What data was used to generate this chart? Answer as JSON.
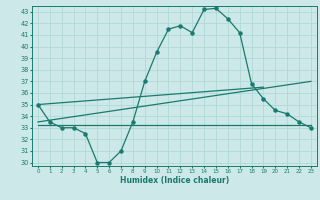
{
  "xlabel": "Humidex (Indice chaleur)",
  "x": [
    0,
    1,
    2,
    3,
    4,
    5,
    6,
    7,
    8,
    9,
    10,
    11,
    12,
    13,
    14,
    15,
    16,
    17,
    18,
    19,
    20,
    21,
    22,
    23
  ],
  "line1": [
    35,
    33.5,
    33,
    33,
    32.5,
    30,
    30,
    31,
    33.5,
    37,
    39.5,
    41.5,
    41.8,
    41.2,
    43.2,
    43.3,
    42.4,
    41.2,
    36.8,
    35.5,
    34.5,
    34.2,
    33.5,
    33
  ],
  "line2_x": [
    0,
    23
  ],
  "line2_y": [
    33.2,
    33.2
  ],
  "line3_x": [
    0,
    23
  ],
  "line3_y": [
    33.5,
    37.0
  ],
  "line4_x": [
    0,
    19
  ],
  "line4_y": [
    35.0,
    36.5
  ],
  "background": "#cce8e8",
  "grid_color": "#b0d8d8",
  "line_color": "#1a7a6e",
  "ylim": [
    29.7,
    43.5
  ],
  "xlim": [
    -0.5,
    23.5
  ],
  "yticks": [
    30,
    31,
    32,
    33,
    34,
    35,
    36,
    37,
    38,
    39,
    40,
    41,
    42,
    43
  ],
  "xticks": [
    0,
    1,
    2,
    3,
    4,
    5,
    6,
    7,
    8,
    9,
    10,
    11,
    12,
    13,
    14,
    15,
    16,
    17,
    18,
    19,
    20,
    21,
    22,
    23
  ]
}
